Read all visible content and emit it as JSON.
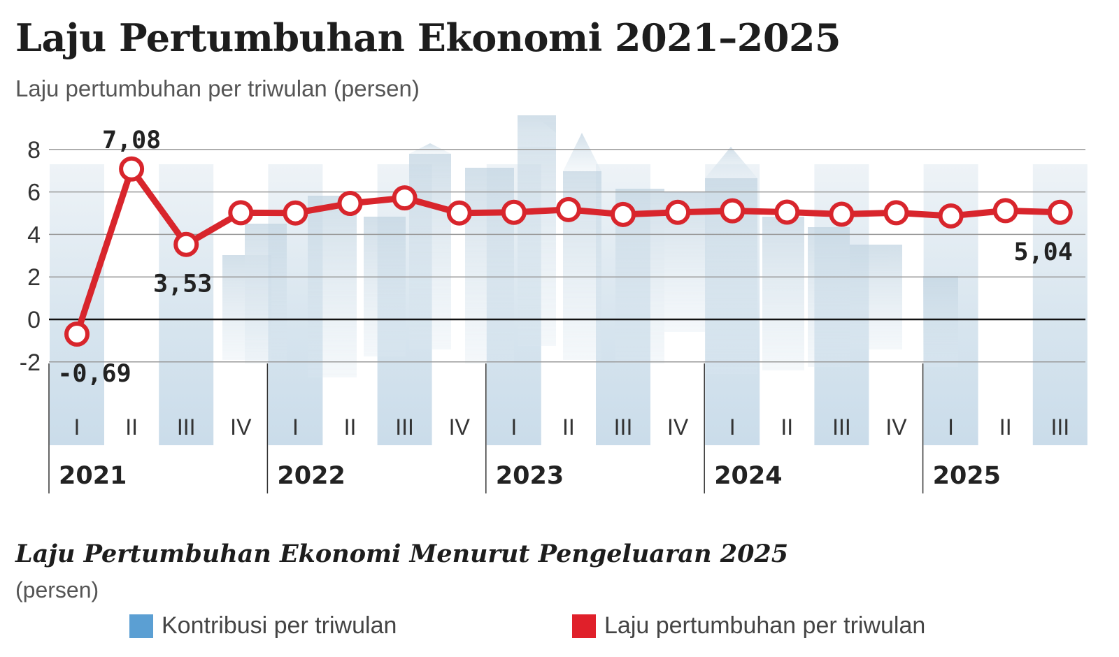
{
  "title": "Laju Pertumbuhan Ekonomi 2021–2025",
  "subtitle": "Laju pertumbuhan per triwulan (persen)",
  "section": {
    "title": "Laju Pertumbuhan Ekonomi Menurut Pengeluaran 2025",
    "unit": "(persen)"
  },
  "legend": [
    {
      "label": "Kontribusi per triwulan",
      "color": "#5b9fd3"
    },
    {
      "label": "Laju pertumbuhan per triwulan",
      "color": "#e0202a"
    }
  ],
  "colors": {
    "line": "#d8252c",
    "band": "#d3e3ee",
    "skyline": "#b9cfdd",
    "grid": "#9a9a9a"
  },
  "chart_data": {
    "type": "line",
    "title": "Laju Pertumbuhan Ekonomi 2021–2025",
    "ylabel": "Laju pertumbuhan per triwulan (persen)",
    "ylim": [
      -2,
      8
    ],
    "yticks": [
      8,
      6,
      4,
      2,
      0,
      -2
    ],
    "categories": [
      "I",
      "II",
      "III",
      "IV",
      "I",
      "II",
      "III",
      "IV",
      "I",
      "II",
      "III",
      "IV",
      "I",
      "II",
      "III",
      "IV",
      "I",
      "II",
      "III"
    ],
    "years": [
      "2021",
      "2022",
      "2023",
      "2024",
      "2025"
    ],
    "series": [
      {
        "name": "Laju pertumbuhan per triwulan",
        "values": [
          -0.69,
          7.08,
          3.53,
          5.02,
          5.01,
          5.46,
          5.72,
          5.01,
          5.04,
          5.17,
          4.94,
          5.04,
          5.11,
          5.05,
          4.95,
          5.02,
          4.87,
          5.12,
          5.04
        ]
      }
    ],
    "labels": [
      {
        "index": 0,
        "text": "-0,69",
        "pos": "below"
      },
      {
        "index": 1,
        "text": "7,08",
        "pos": "above"
      },
      {
        "index": 2,
        "text": "3,53",
        "pos": "below"
      },
      {
        "index": 18,
        "text": "5,04",
        "pos": "below"
      }
    ]
  }
}
